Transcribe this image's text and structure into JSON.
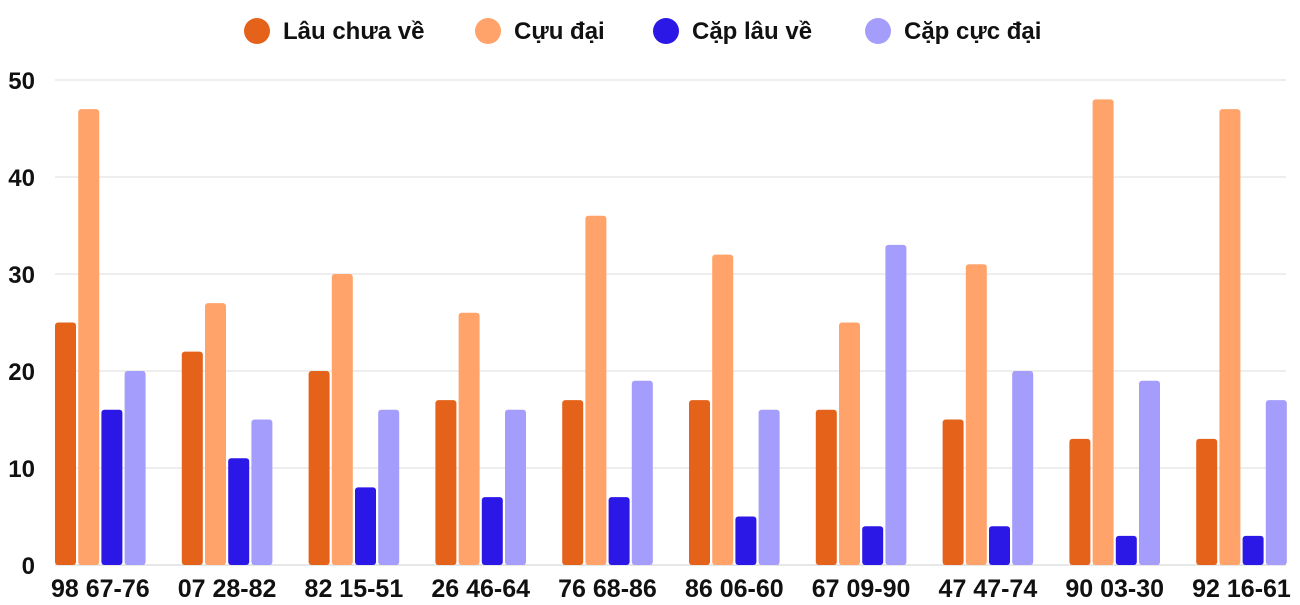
{
  "chart_data": {
    "type": "bar",
    "title": "",
    "xlabel": "",
    "ylabel": "",
    "ylim": [
      0,
      50
    ],
    "yticks": [
      0,
      10,
      20,
      30,
      40,
      50
    ],
    "grid": true,
    "legend_position": "top-center",
    "categories": [
      "98 67-76",
      "07 28-82",
      "82 15-51",
      "26 46-64",
      "76 68-86",
      "86 06-60",
      "67 09-90",
      "47 47-74",
      "90 03-30",
      "92 16-61"
    ],
    "series": [
      {
        "name": "Lâu chưa về",
        "color": "#e5621a",
        "values": [
          25,
          22,
          20,
          17,
          17,
          17,
          16,
          15,
          13,
          13
        ]
      },
      {
        "name": "Cựu đại",
        "color": "#ffa36b",
        "values": [
          47,
          27,
          30,
          26,
          36,
          32,
          25,
          31,
          48,
          47
        ]
      },
      {
        "name": "Cặp lâu về",
        "color": "#2b17e6",
        "values": [
          16,
          11,
          8,
          7,
          7,
          5,
          4,
          4,
          3,
          3
        ]
      },
      {
        "name": "Cặp cực đại",
        "color": "#a49dfb",
        "values": [
          20,
          15,
          16,
          16,
          19,
          16,
          33,
          20,
          19,
          17
        ]
      }
    ]
  }
}
